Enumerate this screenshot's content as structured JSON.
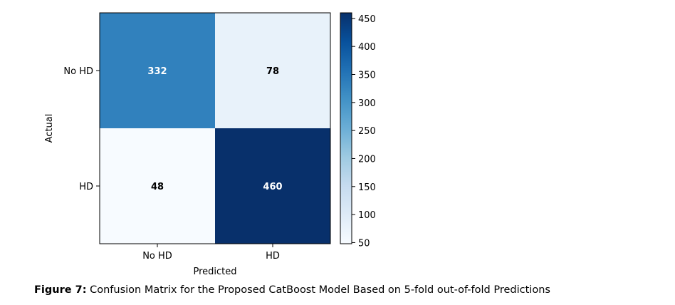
{
  "chart_data": {
    "type": "heatmap",
    "xlabel": "Predicted",
    "ylabel": "Actual",
    "x_categories": [
      "No HD",
      "HD"
    ],
    "y_categories": [
      "No HD",
      "HD"
    ],
    "values": [
      [
        332,
        78
      ],
      [
        48,
        460
      ]
    ],
    "colorbar": {
      "min": 48,
      "max": 460,
      "ticks": [
        "50",
        "100",
        "150",
        "200",
        "250",
        "300",
        "350",
        "400",
        "450"
      ],
      "colormap": "Blues"
    }
  },
  "caption": {
    "label": "Figure 7:",
    "text": " Confusion Matrix for the Proposed CatBoost Model Based on 5-fold out-of-fold Predictions"
  }
}
